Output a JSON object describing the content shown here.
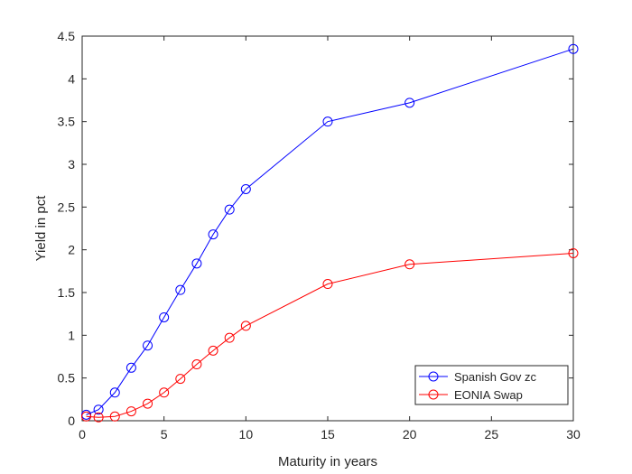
{
  "chart_data": {
    "type": "line",
    "title": "",
    "xlabel": "Maturity in years",
    "ylabel": "Yield in pct",
    "xlim": [
      0,
      30
    ],
    "ylim": [
      0,
      4.5
    ],
    "xticks": [
      0,
      5,
      10,
      15,
      20,
      25,
      30
    ],
    "yticks": [
      0,
      0.5,
      1,
      1.5,
      2,
      2.5,
      3,
      3.5,
      4,
      4.5
    ],
    "xtick_labels": [
      "0",
      "5",
      "10",
      "15",
      "20",
      "25",
      "30"
    ],
    "ytick_labels": [
      "0",
      "0.5",
      "1",
      "1.5",
      "2",
      "2.5",
      "3",
      "3.5",
      "4",
      "4.5"
    ],
    "grid": false,
    "legend_position": "bottom-right",
    "series": [
      {
        "name": "Spanish Gov zc",
        "color": "#0000ff",
        "marker": "circle",
        "x": [
          0.25,
          1,
          2,
          3,
          4,
          5,
          6,
          7,
          8,
          9,
          10,
          15,
          20,
          30
        ],
        "y": [
          0.07,
          0.13,
          0.33,
          0.62,
          0.88,
          1.21,
          1.53,
          1.84,
          2.18,
          2.47,
          2.71,
          3.5,
          3.72,
          4.35
        ]
      },
      {
        "name": "EONIA Swap",
        "color": "#ff0000",
        "marker": "circle",
        "x": [
          0.25,
          1,
          2,
          3,
          4,
          5,
          6,
          7,
          8,
          9,
          10,
          15,
          20,
          30
        ],
        "y": [
          0.05,
          0.04,
          0.05,
          0.11,
          0.2,
          0.33,
          0.49,
          0.66,
          0.82,
          0.97,
          1.11,
          1.6,
          1.83,
          1.96
        ]
      }
    ]
  }
}
